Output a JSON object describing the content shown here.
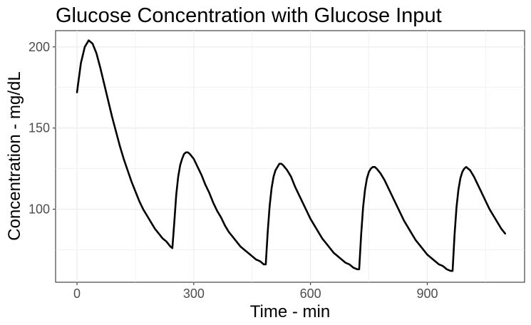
{
  "chart_data": {
    "type": "line",
    "title": "Glucose Concentration with Glucose Input",
    "xlabel": "Time - min",
    "ylabel": "Concentration - mg/dL",
    "xlim": [
      -55,
      1150
    ],
    "ylim": [
      55,
      210
    ],
    "x_ticks": [
      0,
      300,
      600,
      900
    ],
    "x_tick_labels": [
      "0",
      "300",
      "600",
      "900"
    ],
    "y_ticks": [
      100,
      150,
      200
    ],
    "y_tick_labels": [
      "100",
      "150",
      "200"
    ],
    "grid": true,
    "legend": "none",
    "series": [
      {
        "color": "#000000",
        "x": [
          0,
          10,
          20,
          30,
          40,
          50,
          60,
          70,
          80,
          90,
          100,
          110,
          120,
          130,
          140,
          150,
          160,
          170,
          180,
          190,
          200,
          210,
          220,
          230,
          240,
          245,
          250,
          255,
          260,
          265,
          270,
          275,
          280,
          285,
          290,
          300,
          310,
          320,
          330,
          340,
          350,
          360,
          370,
          380,
          390,
          400,
          410,
          420,
          430,
          440,
          450,
          460,
          470,
          480,
          485,
          490,
          495,
          500,
          505,
          510,
          515,
          520,
          525,
          530,
          540,
          550,
          560,
          570,
          580,
          590,
          600,
          610,
          620,
          630,
          640,
          650,
          660,
          670,
          680,
          690,
          700,
          710,
          720,
          725,
          730,
          735,
          740,
          745,
          750,
          755,
          760,
          765,
          770,
          780,
          790,
          800,
          810,
          820,
          830,
          840,
          850,
          860,
          870,
          880,
          890,
          900,
          910,
          920,
          930,
          940,
          950,
          960,
          965,
          970,
          975,
          980,
          985,
          990,
          995,
          1000,
          1005,
          1010,
          1020,
          1030,
          1040,
          1050,
          1060,
          1070,
          1080,
          1090,
          1100
        ],
        "y": [
          172,
          190,
          200,
          204,
          202,
          196,
          187,
          177,
          167,
          157,
          148,
          139,
          131,
          124,
          117,
          111,
          105,
          100,
          96,
          92,
          88,
          85,
          82,
          80,
          77,
          76,
          92,
          109,
          120,
          127,
          131,
          134,
          135,
          135,
          134,
          131,
          126,
          121,
          115,
          110,
          104,
          99,
          95,
          90,
          86,
          83,
          80,
          77,
          75,
          73,
          71,
          69,
          68,
          66,
          66,
          86,
          102,
          113,
          120,
          124,
          126,
          128,
          128,
          127,
          124,
          120,
          114,
          109,
          104,
          99,
          94,
          90,
          86,
          82,
          79,
          76,
          73,
          71,
          69,
          67,
          66,
          64,
          63,
          63,
          84,
          101,
          112,
          119,
          123,
          125,
          126,
          126,
          125,
          122,
          118,
          113,
          108,
          103,
          98,
          93,
          89,
          85,
          81,
          78,
          75,
          72,
          70,
          68,
          66,
          65,
          63,
          62,
          62,
          84,
          101,
          112,
          119,
          123,
          125,
          126,
          125,
          124,
          120,
          115,
          110,
          105,
          100,
          96,
          92,
          88,
          85
        ]
      }
    ]
  }
}
